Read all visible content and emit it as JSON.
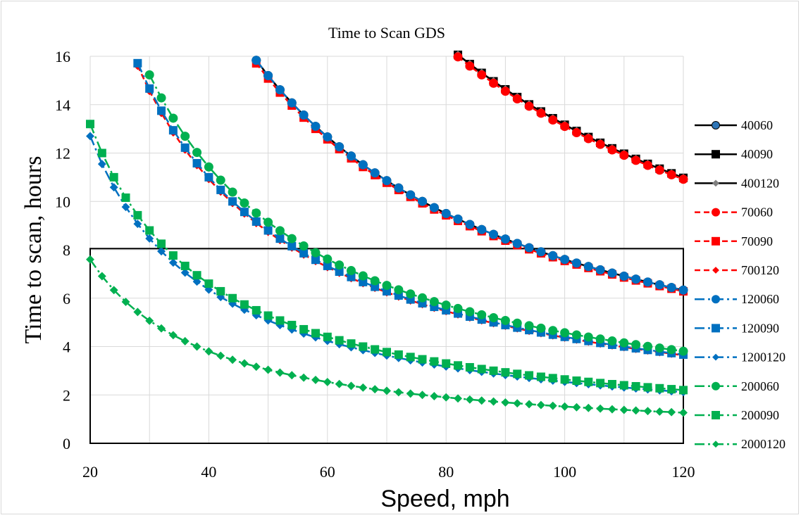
{
  "chart_data": {
    "type": "line",
    "title": "Time to Scan GDS",
    "xlabel": "Speed, mph",
    "ylabel": "Time to scan, hours",
    "xlim": [
      20,
      120
    ],
    "ylim": [
      0,
      16
    ],
    "x_ticks": [
      "20",
      "40",
      "60",
      "80",
      "100",
      "120"
    ],
    "y_ticks": [
      "0",
      "2",
      "4",
      "6",
      "8",
      "10",
      "12",
      "14",
      "16"
    ],
    "grid": "vertical and horizontal, light gray",
    "legend_position": "right",
    "highlight_box": {
      "x_range": [
        20,
        120
      ],
      "y_range": [
        0,
        8.05
      ],
      "color": "#000000"
    },
    "series": [
      {
        "name": "40060",
        "k": 760,
        "color": "#000000",
        "marker": "circle",
        "marker_fill": "#2e75b6",
        "dash": "solid",
        "x_start": 48
      },
      {
        "name": "40090",
        "k": 1317,
        "color": "#000000",
        "marker": "square",
        "marker_fill": "#000000",
        "dash": "solid",
        "x_start": 82
      },
      {
        "name": "400120",
        "k": 1317,
        "color": "#000000",
        "marker": "diamond",
        "marker_fill": "#7f7f7f",
        "dash": "solid",
        "x_start": 82
      },
      {
        "name": "70060",
        "k": 1310,
        "color": "#ff0000",
        "marker": "circle",
        "marker_fill": "#ff0000",
        "dash": "dashed",
        "x_start": 82
      },
      {
        "name": "70090",
        "k": 754,
        "color": "#ff0000",
        "marker": "square",
        "marker_fill": "#ff0000",
        "dash": "dashed",
        "x_start": 48
      },
      {
        "name": "700120",
        "k": 437,
        "color": "#ff0000",
        "marker": "diamond",
        "marker_fill": "#ff0000",
        "dash": "dashed",
        "x_start": 28
      },
      {
        "name": "120060",
        "k": 760,
        "color": "#0070c0",
        "marker": "circle",
        "marker_fill": "#0070c0",
        "dash": "dashdot",
        "x_start": 48
      },
      {
        "name": "120090",
        "k": 440,
        "color": "#0070c0",
        "marker": "square",
        "marker_fill": "#0070c0",
        "dash": "dashdot",
        "x_start": 28
      },
      {
        "name": "1200120",
        "k": 254,
        "color": "#0070c0",
        "marker": "diamond",
        "marker_fill": "#0070c0",
        "dash": "dashdot",
        "x_start": 20
      },
      {
        "name": "200060",
        "k": 457,
        "color": "#00b050",
        "marker": "circle",
        "marker_fill": "#00b050",
        "dash": "dashdot",
        "x_start": 30
      },
      {
        "name": "200090",
        "k": 264,
        "color": "#00b050",
        "marker": "square",
        "marker_fill": "#00b050",
        "dash": "dashdot",
        "x_start": 20
      },
      {
        "name": "2000120",
        "k": 152,
        "color": "#00b050",
        "marker": "diamond",
        "marker_fill": "#00b050",
        "dash": "dashdot",
        "x_start": 20
      }
    ]
  }
}
